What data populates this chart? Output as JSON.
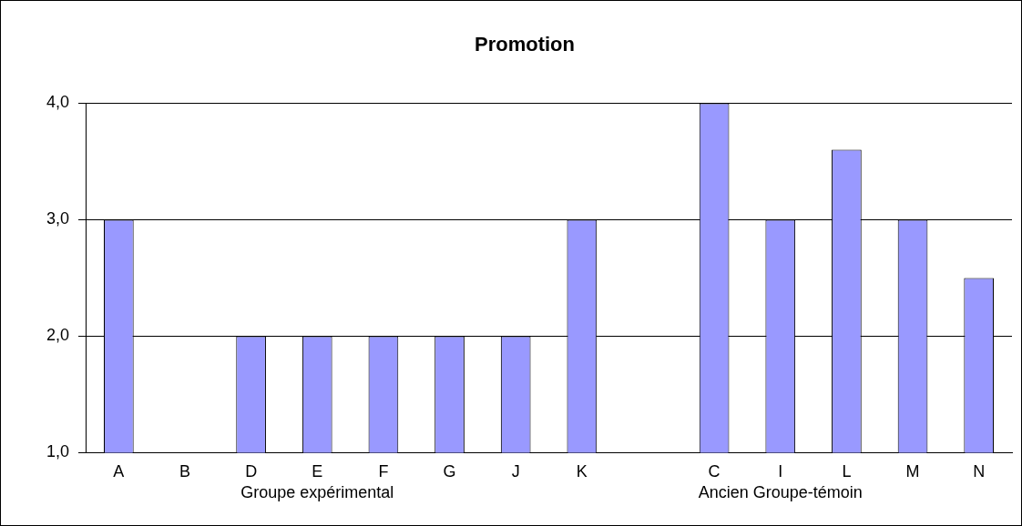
{
  "chart_data": {
    "type": "bar",
    "title": "Promotion",
    "categories": [
      "A",
      "B",
      "D",
      "E",
      "F",
      "G",
      "J",
      "K",
      null,
      "C",
      "I",
      "L",
      "M",
      "N"
    ],
    "values": [
      3,
      null,
      2,
      2,
      2,
      2,
      2,
      3,
      null,
      4,
      3,
      3.6,
      3,
      2.5
    ],
    "color": "#9999ff",
    "ylim": [
      1,
      4
    ],
    "yticks": [
      {
        "value": 1,
        "label": "1,0"
      },
      {
        "value": 2,
        "label": "2,0"
      },
      {
        "value": 3,
        "label": "3,0"
      },
      {
        "value": 4,
        "label": "4,0"
      }
    ],
    "grid": "y",
    "annotations": [
      "Groupe expérimental",
      "Ancien Groupe-témoin"
    ]
  }
}
